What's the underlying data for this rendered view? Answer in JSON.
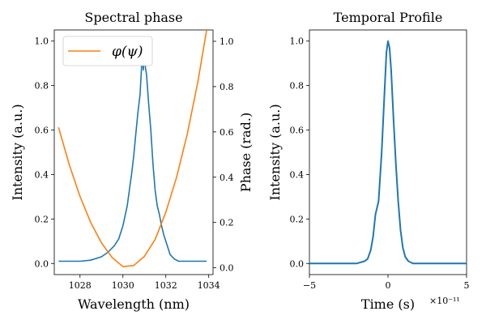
{
  "chart_data": [
    {
      "type": "line",
      "title": "Spectral phase",
      "xlabel": "Wavelength (nm)",
      "ylabel": "Intensity (a.u.)",
      "y2label": "Phase (rad.)",
      "xlim": [
        1026.8,
        1034.2
      ],
      "ylim": [
        -0.05,
        1.05
      ],
      "y2lim": [
        -0.03,
        1.05
      ],
      "xticks": [
        1028,
        1030,
        1032,
        1034
      ],
      "xtick_labels": [
        "1028",
        "1030",
        "1032",
        "1034"
      ],
      "yticks": [
        0.0,
        0.2,
        0.4,
        0.6,
        0.8,
        1.0
      ],
      "ytick_labels": [
        "0.0",
        "0.2",
        "0.4",
        "0.6",
        "0.8",
        "1.0"
      ],
      "y2ticks": [
        0.0,
        0.2,
        0.4,
        0.6,
        0.8,
        1.0
      ],
      "y2tick_labels": [
        "0.0",
        "0.2",
        "0.4",
        "0.6",
        "0.8",
        "1.0"
      ],
      "legend": {
        "placement": "top-left",
        "entries": [
          "φ(ψ)"
        ]
      },
      "grid": false,
      "series": [
        {
          "axis": "left",
          "color": "#1f77b4",
          "x": [
            1027.0,
            1027.5,
            1028.0,
            1028.5,
            1029.0,
            1029.3,
            1029.6,
            1029.8,
            1030.0,
            1030.2,
            1030.3,
            1030.4,
            1030.5,
            1030.6,
            1030.7,
            1030.8,
            1030.85,
            1030.9,
            1030.95,
            1031.0,
            1031.05,
            1031.1,
            1031.2,
            1031.3,
            1031.4,
            1031.5,
            1031.6,
            1031.7,
            1031.8,
            1031.9,
            1032.0,
            1032.1,
            1032.2,
            1032.4,
            1032.6,
            1033.0,
            1033.5,
            1033.9
          ],
          "y": [
            0.01,
            0.01,
            0.01,
            0.015,
            0.03,
            0.05,
            0.08,
            0.11,
            0.17,
            0.26,
            0.33,
            0.4,
            0.48,
            0.58,
            0.68,
            0.76,
            0.85,
            0.95,
            0.87,
            0.95,
            0.88,
            0.85,
            0.72,
            0.6,
            0.45,
            0.33,
            0.26,
            0.22,
            0.17,
            0.13,
            0.1,
            0.07,
            0.04,
            0.02,
            0.01,
            0.01,
            0.01,
            0.01
          ]
        },
        {
          "name": "φ(ψ)",
          "axis": "right",
          "color": "#ff7f0e",
          "x": [
            1027.0,
            1027.5,
            1028.0,
            1028.5,
            1029.0,
            1029.5,
            1030.0,
            1030.5,
            1031.0,
            1031.5,
            1032.0,
            1032.5,
            1033.0,
            1033.5,
            1033.9
          ],
          "y": [
            0.62,
            0.455,
            0.315,
            0.2,
            0.11,
            0.045,
            0.005,
            0.01,
            0.05,
            0.125,
            0.245,
            0.4,
            0.59,
            0.825,
            1.05
          ]
        }
      ]
    },
    {
      "type": "line",
      "title": "Temporal Profile",
      "xlabel": "Time (s)",
      "ylabel": "Intensity (a.u.)",
      "x_offset_label": "×10⁻¹¹",
      "xlim": [
        -5,
        5
      ],
      "ylim": [
        -0.05,
        1.05
      ],
      "xticks": [
        -5,
        0,
        5
      ],
      "xtick_labels": [
        "−5",
        "0",
        "5"
      ],
      "yticks": [
        0.0,
        0.2,
        0.4,
        0.6,
        0.8,
        1.0
      ],
      "ytick_labels": [
        "0.0",
        "0.2",
        "0.4",
        "0.6",
        "0.8",
        "1.0"
      ],
      "grid": false,
      "series": [
        {
          "color": "#1f77b4",
          "x": [
            -5,
            -3,
            -2,
            -1.5,
            -1.3,
            -1.1,
            -0.95,
            -0.8,
            -0.6,
            -0.4,
            -0.2,
            -0.1,
            0,
            0.1,
            0.2,
            0.35,
            0.5,
            0.65,
            0.8,
            0.95,
            1.1,
            1.3,
            1.6,
            2,
            3,
            5
          ],
          "y": [
            0,
            0,
            0,
            0.01,
            0.02,
            0.06,
            0.12,
            0.22,
            0.28,
            0.5,
            0.8,
            0.95,
            1.0,
            0.97,
            0.87,
            0.65,
            0.45,
            0.28,
            0.15,
            0.07,
            0.03,
            0.01,
            0,
            0,
            0,
            0
          ]
        }
      ]
    }
  ]
}
